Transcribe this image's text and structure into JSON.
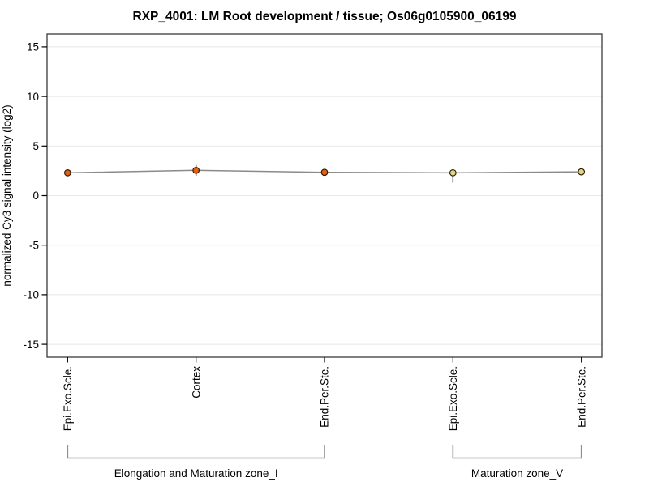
{
  "window": {
    "background": "#ffffff"
  },
  "chart_data": {
    "type": "line",
    "title": "RXP_4001: LM Root development / tissue; Os06g0105900_06199",
    "ylabel": "normalized Cy3 signal intensity (log2)",
    "categories": [
      "Epi.Exo.Scle.",
      "Cortex",
      "End.Per.Ste.",
      "Epi.Exo.Scle.",
      "End.Per.Ste."
    ],
    "x": [
      1,
      2,
      3,
      4,
      5
    ],
    "series": [
      {
        "name": "normalized Cy3 signal intensity",
        "values": [
          2.3,
          2.55,
          2.35,
          2.3,
          2.4
        ],
        "error_low": [
          2.3,
          2.0,
          2.35,
          1.3,
          2.4
        ],
        "error_high": [
          2.3,
          3.1,
          2.35,
          2.4,
          2.4
        ],
        "point_fills": [
          "#e06018",
          "#e06018",
          "#e06018",
          "#ddd685",
          "#ddd685"
        ]
      }
    ],
    "yticks": [
      15,
      10,
      5,
      0,
      -5,
      -10,
      -15
    ],
    "ylim": [
      -16.3,
      16.3
    ],
    "xlim": [
      0.84,
      5.16
    ],
    "grid": true,
    "legend_position": "none",
    "groups": [
      {
        "label": "Elongation and Maturation zone_I",
        "from": 1,
        "to": 3
      },
      {
        "label": "Maturation zone_V",
        "from": 4,
        "to": 5
      }
    ],
    "colors": {
      "line": "#8a8a8a",
      "grid": "#e8e8e8",
      "border": "#3a3a3a",
      "tick": "#000000",
      "error_bar": "#333333",
      "point_stroke": "#2a1500",
      "bracket": "#909090",
      "text": "#000000"
    }
  }
}
